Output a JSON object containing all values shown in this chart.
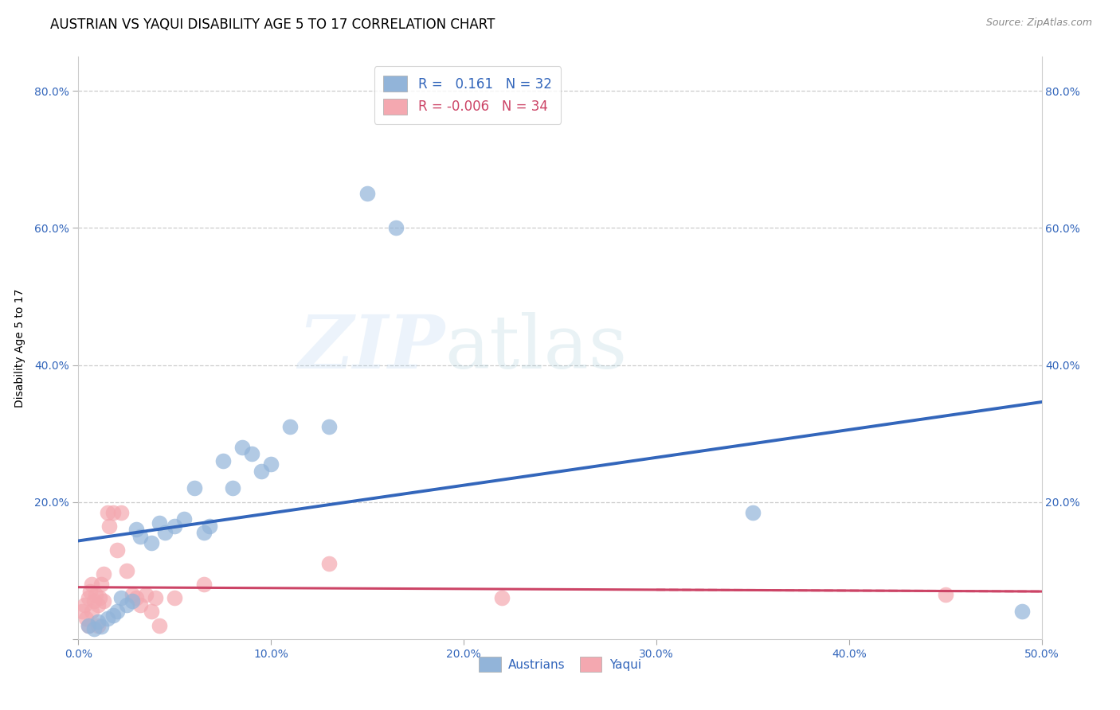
{
  "title": "AUSTRIAN VS YAQUI DISABILITY AGE 5 TO 17 CORRELATION CHART",
  "source": "Source: ZipAtlas.com",
  "ylabel": "Disability Age 5 to 17",
  "xlim": [
    0.0,
    0.5
  ],
  "ylim": [
    0.0,
    0.85
  ],
  "xticks": [
    0.0,
    0.1,
    0.2,
    0.3,
    0.4,
    0.5
  ],
  "yticks": [
    0.0,
    0.2,
    0.4,
    0.6,
    0.8
  ],
  "xticklabels": [
    "0.0%",
    "10.0%",
    "20.0%",
    "30.0%",
    "40.0%",
    "50.0%"
  ],
  "left_yticklabels": [
    "",
    "20.0%",
    "40.0%",
    "60.0%",
    "80.0%"
  ],
  "right_yticklabels": [
    "",
    "20.0%",
    "40.0%",
    "60.0%",
    "80.0%"
  ],
  "blue_color": "#92B4D9",
  "pink_color": "#F4A8B0",
  "blue_line_color": "#3366BB",
  "pink_line_color": "#CC4466",
  "grid_color": "#CCCCCC",
  "background_color": "#FFFFFF",
  "watermark_zip": "ZIP",
  "watermark_atlas": "atlas",
  "legend_R_blue": "0.161",
  "legend_N_blue": "32",
  "legend_R_pink": "-0.006",
  "legend_N_pink": "34",
  "blue_scatter_x": [
    0.005,
    0.008,
    0.01,
    0.012,
    0.015,
    0.018,
    0.02,
    0.022,
    0.025,
    0.028,
    0.03,
    0.032,
    0.038,
    0.042,
    0.045,
    0.05,
    0.055,
    0.06,
    0.065,
    0.068,
    0.075,
    0.08,
    0.085,
    0.09,
    0.095,
    0.1,
    0.11,
    0.13,
    0.15,
    0.165,
    0.35,
    0.49
  ],
  "blue_scatter_y": [
    0.02,
    0.015,
    0.025,
    0.018,
    0.03,
    0.035,
    0.04,
    0.06,
    0.05,
    0.055,
    0.16,
    0.15,
    0.14,
    0.17,
    0.155,
    0.165,
    0.175,
    0.22,
    0.155,
    0.165,
    0.26,
    0.22,
    0.28,
    0.27,
    0.245,
    0.255,
    0.31,
    0.31,
    0.65,
    0.6,
    0.185,
    0.04
  ],
  "pink_scatter_x": [
    0.002,
    0.003,
    0.004,
    0.005,
    0.005,
    0.006,
    0.007,
    0.007,
    0.008,
    0.009,
    0.01,
    0.01,
    0.011,
    0.012,
    0.013,
    0.013,
    0.015,
    0.016,
    0.018,
    0.02,
    0.022,
    0.025,
    0.028,
    0.03,
    0.032,
    0.035,
    0.038,
    0.04,
    0.042,
    0.05,
    0.065,
    0.13,
    0.22,
    0.45
  ],
  "pink_scatter_y": [
    0.04,
    0.05,
    0.03,
    0.06,
    0.02,
    0.07,
    0.08,
    0.04,
    0.055,
    0.065,
    0.05,
    0.02,
    0.06,
    0.08,
    0.095,
    0.055,
    0.185,
    0.165,
    0.185,
    0.13,
    0.185,
    0.1,
    0.065,
    0.06,
    0.05,
    0.065,
    0.04,
    0.06,
    0.02,
    0.06,
    0.08,
    0.11,
    0.06,
    0.065
  ],
  "title_fontsize": 12,
  "axis_label_fontsize": 10,
  "tick_fontsize": 10,
  "legend_fontsize": 12
}
